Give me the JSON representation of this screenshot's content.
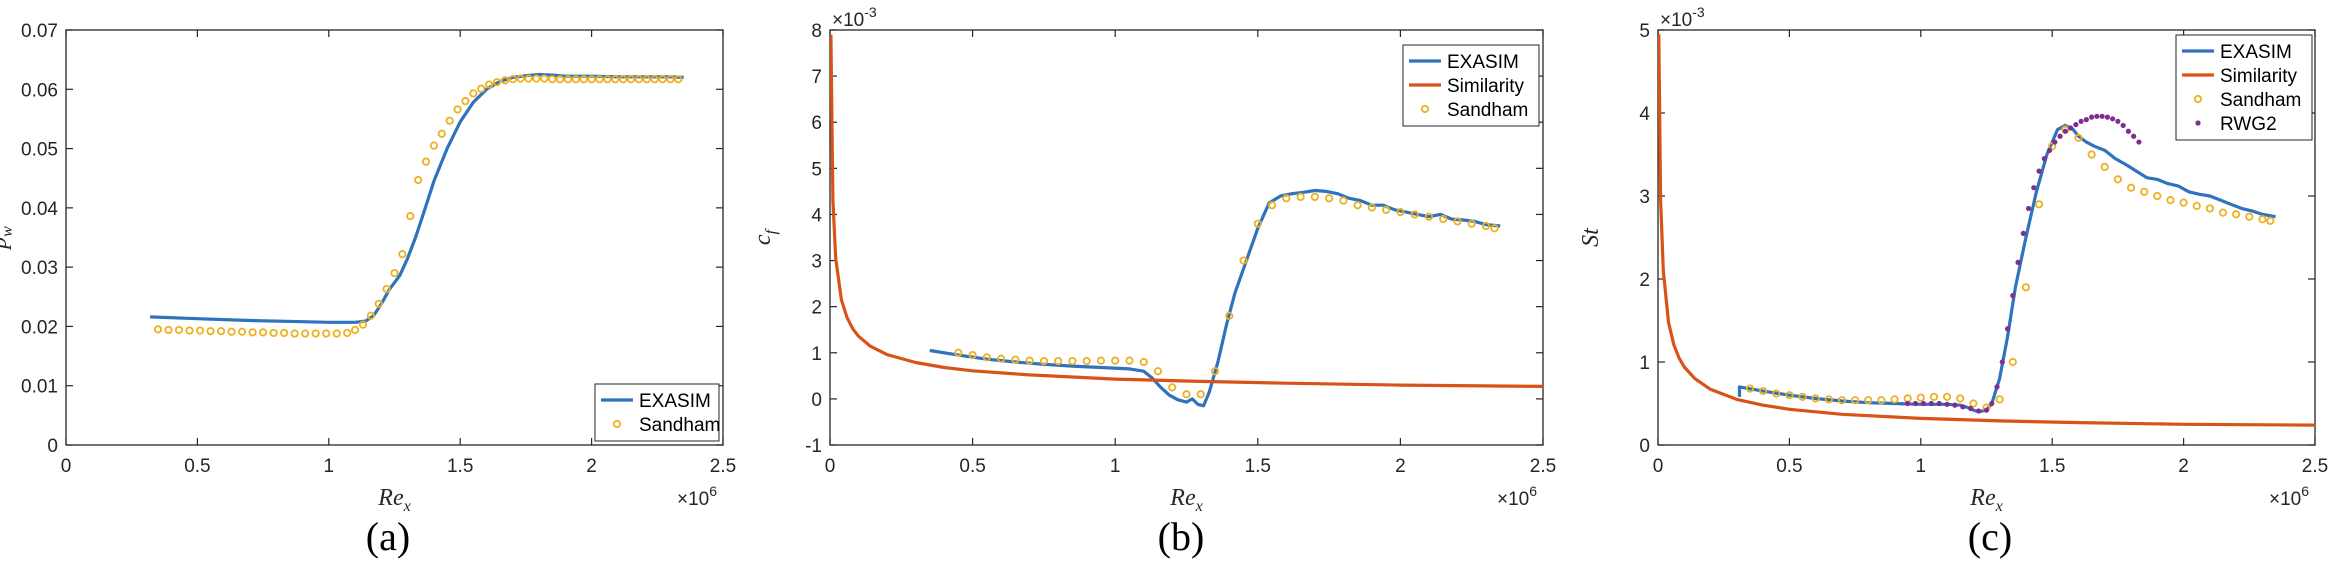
{
  "colors": {
    "exasim": "#2f72bd",
    "similarity": "#d95319",
    "sandham": "#edb120",
    "rwg2": "#7e2f8e"
  },
  "chart_data": [
    {
      "type": "line",
      "caption": "(a)",
      "ylabel_base": "p",
      "ylabel_sub": "w",
      "xlabel_base": "Re",
      "xlabel_sub": "x",
      "x_exponent": "×10",
      "x_exponent_power": "6",
      "y_exponent": "",
      "y_exponent_power": "",
      "xlim": [
        0,
        2.5
      ],
      "ylim": [
        0,
        0.07
      ],
      "xticks": [
        "0",
        "0.5",
        "1",
        "1.5",
        "2",
        "2.5"
      ],
      "yticks": [
        "0",
        "0.01",
        "0.02",
        "0.03",
        "0.04",
        "0.05",
        "0.06",
        "0.07"
      ],
      "xtick_values": [
        0,
        0.5,
        1,
        1.5,
        2,
        2.5
      ],
      "ytick_values": [
        0,
        0.01,
        0.02,
        0.03,
        0.04,
        0.05,
        0.06,
        0.07
      ],
      "legend_position": "bottom-right",
      "series": [
        {
          "name": "EXASIM",
          "kind": "line",
          "color": "#2f72bd",
          "x": [
            0.32,
            0.5,
            0.7,
            0.9,
            1.0,
            1.1,
            1.14,
            1.17,
            1.2,
            1.23,
            1.27,
            1.3,
            1.33,
            1.36,
            1.4,
            1.45,
            1.5,
            1.55,
            1.6,
            1.65,
            1.7,
            1.75,
            1.8,
            1.85,
            1.9,
            2.0,
            2.1,
            2.2,
            2.3,
            2.35
          ],
          "y": [
            0.0216,
            0.0213,
            0.021,
            0.0208,
            0.0207,
            0.0207,
            0.0209,
            0.0218,
            0.0238,
            0.0262,
            0.0286,
            0.0315,
            0.035,
            0.039,
            0.0445,
            0.05,
            0.0545,
            0.0578,
            0.06,
            0.0613,
            0.062,
            0.0623,
            0.0625,
            0.0624,
            0.0622,
            0.0622,
            0.0621,
            0.0621,
            0.0621,
            0.062
          ]
        },
        {
          "name": "Sandham",
          "kind": "marker",
          "color": "#edb120",
          "x": [
            0.35,
            0.39,
            0.43,
            0.47,
            0.51,
            0.55,
            0.59,
            0.63,
            0.67,
            0.71,
            0.75,
            0.79,
            0.83,
            0.87,
            0.91,
            0.95,
            0.99,
            1.03,
            1.07,
            1.1,
            1.13,
            1.16,
            1.19,
            1.22,
            1.25,
            1.28,
            1.31,
            1.34,
            1.37,
            1.4,
            1.43,
            1.46,
            1.49,
            1.52,
            1.55,
            1.58,
            1.61,
            1.64,
            1.67,
            1.7,
            1.73,
            1.76,
            1.79,
            1.82,
            1.85,
            1.88,
            1.91,
            1.94,
            1.97,
            2.0,
            2.03,
            2.06,
            2.09,
            2.12,
            2.15,
            2.18,
            2.21,
            2.24,
            2.27,
            2.3,
            2.33
          ],
          "y": [
            0.0195,
            0.0194,
            0.0194,
            0.0193,
            0.0193,
            0.0192,
            0.0192,
            0.0191,
            0.0191,
            0.019,
            0.019,
            0.0189,
            0.0189,
            0.0188,
            0.0188,
            0.0188,
            0.0188,
            0.0188,
            0.0189,
            0.0194,
            0.0203,
            0.0218,
            0.0238,
            0.0263,
            0.029,
            0.0322,
            0.0386,
            0.0447,
            0.0478,
            0.0505,
            0.0525,
            0.0547,
            0.0566,
            0.058,
            0.0593,
            0.0601,
            0.0608,
            0.0612,
            0.0615,
            0.0617,
            0.0618,
            0.0618,
            0.0618,
            0.0618,
            0.0617,
            0.0617,
            0.0617,
            0.0617,
            0.0617,
            0.0617,
            0.0617,
            0.0617,
            0.0617,
            0.0617,
            0.0617,
            0.0617,
            0.0617,
            0.0617,
            0.0617,
            0.0617,
            0.0617
          ]
        }
      ]
    },
    {
      "type": "line",
      "caption": "(b)",
      "ylabel_base": "c",
      "ylabel_sub": "f",
      "xlabel_base": "Re",
      "xlabel_sub": "x",
      "x_exponent": "×10",
      "x_exponent_power": "6",
      "y_exponent": "×10",
      "y_exponent_power": "-3",
      "xlim": [
        0,
        2.5
      ],
      "ylim": [
        -1,
        8
      ],
      "xticks": [
        "0",
        "0.5",
        "1",
        "1.5",
        "2",
        "2.5"
      ],
      "yticks": [
        "-1",
        "0",
        "1",
        "2",
        "3",
        "4",
        "5",
        "6",
        "7",
        "8"
      ],
      "xtick_values": [
        0,
        0.5,
        1,
        1.5,
        2,
        2.5
      ],
      "ytick_values": [
        -1,
        0,
        1,
        2,
        3,
        4,
        5,
        6,
        7,
        8
      ],
      "legend_position": "top-right",
      "series": [
        {
          "name": "EXASIM",
          "kind": "line",
          "color": "#2f72bd",
          "x": [
            0.35,
            0.45,
            0.55,
            0.65,
            0.75,
            0.85,
            0.95,
            1.05,
            1.1,
            1.13,
            1.16,
            1.19,
            1.22,
            1.25,
            1.27,
            1.29,
            1.31,
            1.33,
            1.36,
            1.39,
            1.42,
            1.46,
            1.5,
            1.54,
            1.58,
            1.62,
            1.66,
            1.7,
            1.74,
            1.78,
            1.82,
            1.86,
            1.9,
            1.94,
            1.98,
            2.02,
            2.06,
            2.1,
            2.14,
            2.18,
            2.22,
            2.26,
            2.3,
            2.35
          ],
          "y": [
            1.05,
            0.95,
            0.86,
            0.8,
            0.75,
            0.71,
            0.68,
            0.65,
            0.6,
            0.45,
            0.25,
            0.08,
            -0.02,
            -0.07,
            0.0,
            -0.12,
            -0.15,
            0.15,
            0.8,
            1.6,
            2.3,
            3.0,
            3.7,
            4.25,
            4.4,
            4.45,
            4.48,
            4.52,
            4.5,
            4.45,
            4.35,
            4.3,
            4.2,
            4.2,
            4.1,
            4.05,
            4.0,
            3.95,
            4.0,
            3.9,
            3.88,
            3.85,
            3.78,
            3.75
          ]
        },
        {
          "name": "Similarity",
          "kind": "line",
          "color": "#d95319",
          "x": [
            0.003,
            0.01,
            0.02,
            0.04,
            0.06,
            0.08,
            0.1,
            0.14,
            0.2,
            0.3,
            0.4,
            0.5,
            0.7,
            1.0,
            1.3,
            1.6,
            2.0,
            2.5
          ],
          "y": [
            7.9,
            4.3,
            3.05,
            2.15,
            1.76,
            1.52,
            1.36,
            1.15,
            0.96,
            0.79,
            0.68,
            0.61,
            0.52,
            0.43,
            0.38,
            0.34,
            0.3,
            0.27
          ]
        },
        {
          "name": "Sandham",
          "kind": "marker",
          "color": "#edb120",
          "x": [
            0.45,
            0.5,
            0.55,
            0.6,
            0.65,
            0.7,
            0.75,
            0.8,
            0.85,
            0.9,
            0.95,
            1.0,
            1.05,
            1.1,
            1.15,
            1.2,
            1.25,
            1.3,
            1.35,
            1.4,
            1.45,
            1.5,
            1.55,
            1.6,
            1.65,
            1.7,
            1.75,
            1.8,
            1.85,
            1.9,
            1.95,
            2.0,
            2.05,
            2.1,
            2.15,
            2.2,
            2.25,
            2.3,
            2.33
          ],
          "y": [
            1.0,
            0.95,
            0.9,
            0.87,
            0.85,
            0.83,
            0.82,
            0.82,
            0.82,
            0.82,
            0.83,
            0.83,
            0.83,
            0.8,
            0.6,
            0.25,
            0.1,
            0.1,
            0.6,
            1.8,
            3.0,
            3.8,
            4.2,
            4.35,
            4.38,
            4.38,
            4.35,
            4.3,
            4.2,
            4.15,
            4.1,
            4.05,
            4.0,
            3.95,
            3.9,
            3.85,
            3.8,
            3.75,
            3.7
          ]
        }
      ]
    },
    {
      "type": "line",
      "caption": "(c)",
      "ylabel_base": "St",
      "ylabel_sub": "",
      "xlabel_base": "Re",
      "xlabel_sub": "x",
      "x_exponent": "×10",
      "x_exponent_power": "6",
      "y_exponent": "×10",
      "y_exponent_power": "-3",
      "xlim": [
        0,
        2.5
      ],
      "ylim": [
        0,
        5
      ],
      "xticks": [
        "0",
        "0.5",
        "1",
        "1.5",
        "2",
        "2.5"
      ],
      "yticks": [
        "0",
        "1",
        "2",
        "3",
        "4",
        "5"
      ],
      "xtick_values": [
        0,
        0.5,
        1,
        1.5,
        2,
        2.5
      ],
      "ytick_values": [
        0,
        1,
        2,
        3,
        4,
        5
      ],
      "legend_position": "top-right",
      "series": [
        {
          "name": "EXASIM",
          "kind": "line",
          "color": "#2f72bd",
          "x": [
            0.31,
            0.31,
            0.4,
            0.5,
            0.6,
            0.7,
            0.8,
            0.9,
            1.0,
            1.05,
            1.1,
            1.15,
            1.18,
            1.2,
            1.22,
            1.25,
            1.27,
            1.3,
            1.33,
            1.36,
            1.4,
            1.44,
            1.48,
            1.52,
            1.55,
            1.58,
            1.6,
            1.63,
            1.66,
            1.7,
            1.74,
            1.78,
            1.82,
            1.86,
            1.9,
            1.94,
            1.98,
            2.02,
            2.06,
            2.1,
            2.14,
            2.18,
            2.22,
            2.26,
            2.3,
            2.35
          ],
          "y": [
            0.58,
            0.7,
            0.65,
            0.6,
            0.56,
            0.53,
            0.51,
            0.5,
            0.49,
            0.49,
            0.49,
            0.48,
            0.45,
            0.42,
            0.4,
            0.42,
            0.5,
            0.8,
            1.3,
            1.9,
            2.5,
            3.05,
            3.5,
            3.8,
            3.85,
            3.8,
            3.72,
            3.65,
            3.6,
            3.55,
            3.45,
            3.38,
            3.3,
            3.22,
            3.2,
            3.15,
            3.12,
            3.05,
            3.02,
            3.0,
            2.95,
            2.9,
            2.85,
            2.82,
            2.78,
            2.75
          ]
        },
        {
          "name": "Similarity",
          "kind": "line",
          "color": "#d95319",
          "x": [
            0.003,
            0.01,
            0.02,
            0.04,
            0.06,
            0.08,
            0.1,
            0.14,
            0.2,
            0.3,
            0.4,
            0.5,
            0.7,
            1.0,
            1.3,
            1.6,
            2.0,
            2.5
          ],
          "y": [
            4.95,
            2.95,
            2.1,
            1.48,
            1.21,
            1.05,
            0.94,
            0.8,
            0.67,
            0.55,
            0.48,
            0.43,
            0.37,
            0.32,
            0.29,
            0.27,
            0.25,
            0.24
          ]
        },
        {
          "name": "Sandham",
          "kind": "marker",
          "color": "#edb120",
          "x": [
            0.35,
            0.4,
            0.45,
            0.5,
            0.55,
            0.6,
            0.65,
            0.7,
            0.75,
            0.8,
            0.85,
            0.9,
            0.95,
            1.0,
            1.05,
            1.1,
            1.15,
            1.2,
            1.25,
            1.3,
            1.35,
            1.4,
            1.45,
            1.5,
            1.55,
            1.6,
            1.65,
            1.7,
            1.75,
            1.8,
            1.85,
            1.9,
            1.95,
            2.0,
            2.05,
            2.1,
            2.15,
            2.2,
            2.25,
            2.3,
            2.33
          ],
          "y": [
            0.68,
            0.65,
            0.62,
            0.6,
            0.58,
            0.56,
            0.55,
            0.54,
            0.54,
            0.54,
            0.54,
            0.55,
            0.56,
            0.57,
            0.58,
            0.58,
            0.56,
            0.5,
            0.45,
            0.55,
            1.0,
            1.9,
            2.9,
            3.6,
            3.8,
            3.7,
            3.5,
            3.35,
            3.2,
            3.1,
            3.05,
            3.0,
            2.95,
            2.92,
            2.88,
            2.85,
            2.8,
            2.78,
            2.75,
            2.72,
            2.7
          ]
        },
        {
          "name": "RWG2",
          "kind": "dot",
          "color": "#7e2f8e",
          "x": [
            0.95,
            0.98,
            1.01,
            1.04,
            1.07,
            1.1,
            1.13,
            1.16,
            1.19,
            1.22,
            1.25,
            1.27,
            1.29,
            1.31,
            1.33,
            1.35,
            1.37,
            1.39,
            1.41,
            1.43,
            1.45,
            1.47,
            1.49,
            1.51,
            1.53,
            1.55,
            1.57,
            1.59,
            1.61,
            1.63,
            1.65,
            1.67,
            1.69,
            1.71,
            1.73,
            1.75,
            1.77,
            1.79,
            1.81,
            1.83
          ],
          "y": [
            0.5,
            0.5,
            0.5,
            0.5,
            0.5,
            0.49,
            0.48,
            0.46,
            0.44,
            0.41,
            0.42,
            0.5,
            0.7,
            1.0,
            1.4,
            1.8,
            2.2,
            2.55,
            2.85,
            3.1,
            3.3,
            3.45,
            3.55,
            3.65,
            3.72,
            3.78,
            3.82,
            3.86,
            3.9,
            3.92,
            3.95,
            3.96,
            3.96,
            3.95,
            3.93,
            3.9,
            3.85,
            3.78,
            3.72,
            3.65
          ]
        }
      ]
    }
  ]
}
